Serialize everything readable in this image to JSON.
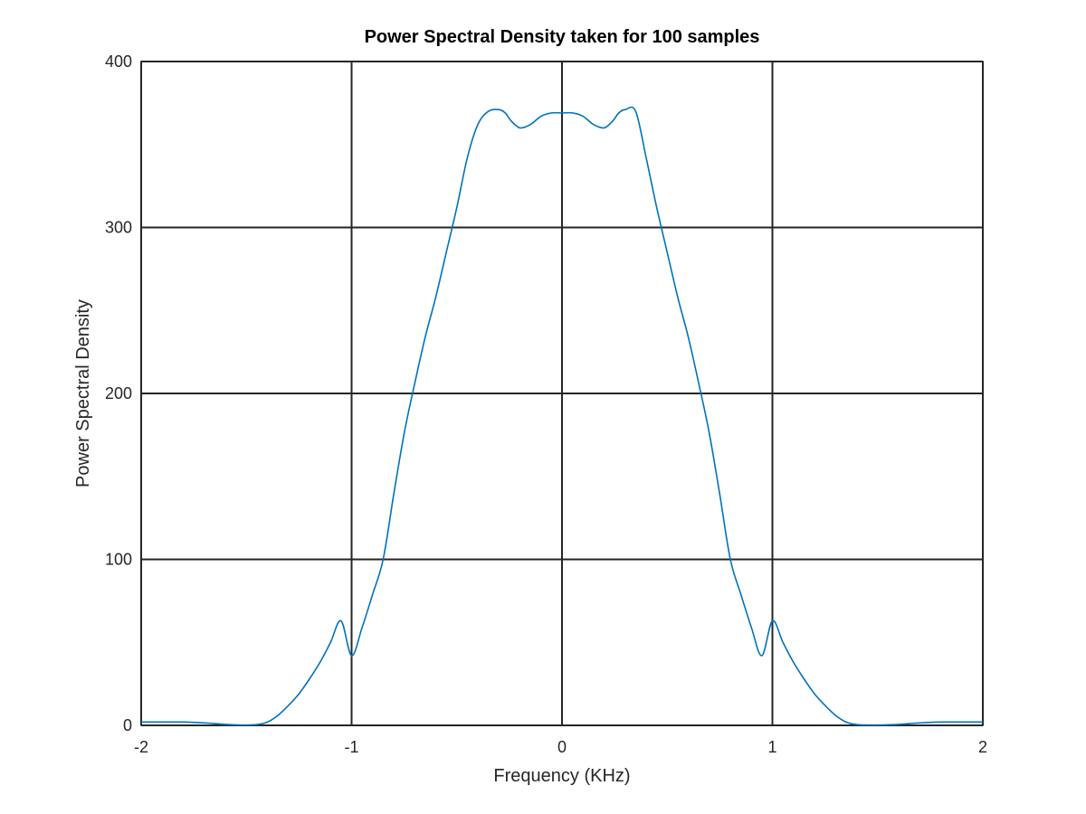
{
  "chart_data": {
    "type": "line",
    "title": "Power Spectral Density taken for 100 samples",
    "xlabel": "Frequency (KHz)",
    "ylabel": "Power Spectral Density",
    "xlim": [
      -2,
      2
    ],
    "ylim": [
      0,
      400
    ],
    "xticks": [
      -2,
      -1,
      0,
      1,
      2
    ],
    "yticks": [
      0,
      100,
      200,
      300,
      400
    ],
    "xtick_labels": [
      "-2",
      "-1",
      "0",
      "1",
      "2"
    ],
    "ytick_labels": [
      "0",
      "100",
      "200",
      "300",
      "400"
    ],
    "grid": true,
    "legend": "none",
    "line_color": "#0072BD",
    "series": [
      {
        "x": [
          -2.0,
          -1.9,
          -1.8,
          -1.7,
          -1.6,
          -1.5,
          -1.45,
          -1.4,
          -1.35,
          -1.3,
          -1.25,
          -1.2,
          -1.15,
          -1.1,
          -1.05,
          -1.0,
          -0.95,
          -0.9,
          -0.85,
          -0.8,
          -0.75,
          -0.7,
          -0.65,
          -0.6,
          -0.55,
          -0.5,
          -0.45,
          -0.4,
          -0.35,
          -0.3,
          -0.27,
          -0.24,
          -0.2,
          -0.15,
          -0.1,
          -0.05,
          0.0,
          0.05,
          0.1,
          0.15,
          0.2,
          0.24,
          0.27,
          0.3,
          0.35,
          0.4,
          0.45,
          0.5,
          0.55,
          0.6,
          0.65,
          0.7,
          0.75,
          0.8,
          0.85,
          0.9,
          0.95,
          1.0,
          1.05,
          1.1,
          1.15,
          1.2,
          1.25,
          1.3,
          1.35,
          1.4,
          1.45,
          1.5,
          1.6,
          1.7,
          1.8,
          1.9,
          2.0
        ],
        "y": [
          2,
          2,
          2,
          1.5,
          0.6,
          0.2,
          0.5,
          2,
          6,
          12,
          19,
          28,
          38,
          50,
          63,
          42,
          59,
          79,
          100,
          139,
          176,
          206,
          234,
          258,
          285,
          312,
          342,
          362,
          370,
          371,
          369,
          364,
          360,
          362,
          367,
          369,
          369,
          369,
          367,
          362,
          360,
          364,
          369,
          371,
          370,
          342,
          312,
          285,
          258,
          234,
          206,
          176,
          139,
          100,
          79,
          59,
          42,
          63,
          50,
          38,
          28,
          19,
          12,
          6,
          2,
          0.5,
          0.2,
          0.2,
          0.6,
          1.5,
          2,
          2,
          2
        ]
      }
    ]
  }
}
